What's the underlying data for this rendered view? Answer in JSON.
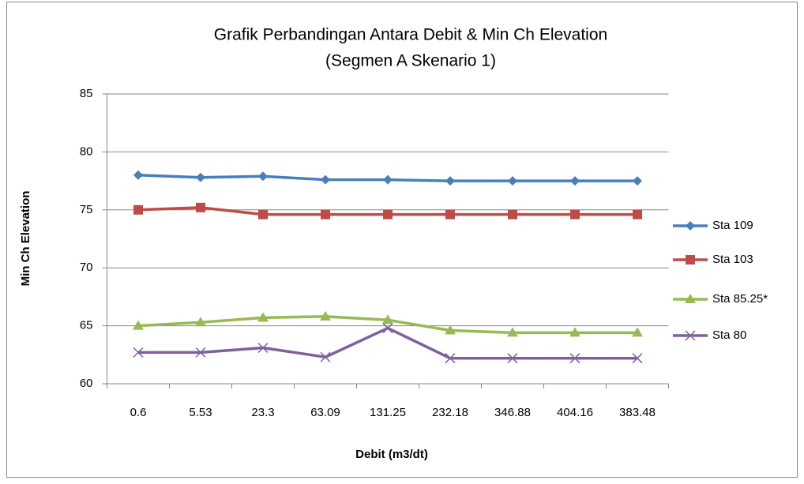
{
  "chart_data": {
    "type": "line",
    "title": "Grafik Perbandingan Antara Debit & Min Ch Elevation",
    "subtitle": "(Segmen  A Skenario 1)",
    "x_label": "Debit (m3/dt)",
    "y_label": "Min Ch Elevation",
    "categories": [
      "0.6",
      "5.53",
      "23.3",
      "63.09",
      "131.25",
      "232.18",
      "346.88",
      "404.16",
      "383.48"
    ],
    "series": [
      {
        "name": "Sta 109",
        "color": "#4a7ebb",
        "marker": "diamond",
        "values": [
          78.0,
          77.8,
          77.9,
          77.6,
          77.6,
          77.5,
          77.5,
          77.5,
          77.5
        ]
      },
      {
        "name": "Sta 103",
        "color": "#be4b48",
        "marker": "square",
        "values": [
          75.0,
          75.2,
          74.6,
          74.6,
          74.6,
          74.6,
          74.6,
          74.6,
          74.6
        ]
      },
      {
        "name": "Sta 85.25*",
        "color": "#98b954",
        "marker": "triangle",
        "values": [
          65.0,
          65.3,
          65.7,
          65.8,
          65.5,
          64.6,
          64.4,
          64.4,
          64.4
        ]
      },
      {
        "name": "Sta 80",
        "color": "#7d60a0",
        "marker": "x",
        "values": [
          62.7,
          62.7,
          63.1,
          62.3,
          64.8,
          62.2,
          62.2,
          62.2,
          62.2
        ]
      }
    ],
    "ylim": [
      60,
      85
    ],
    "yticks": [
      60,
      65,
      70,
      75,
      80,
      85
    ],
    "grid": true,
    "legend": "right"
  }
}
